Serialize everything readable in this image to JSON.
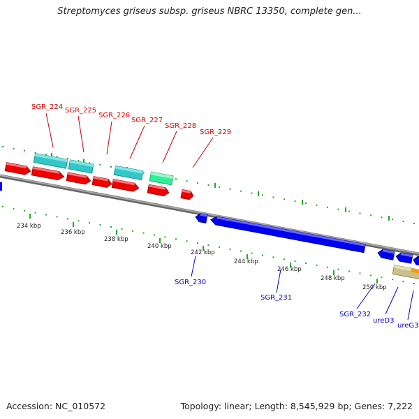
{
  "title": "Streptomyces griseus subsp. griseus NBRC 13350, complete gen...",
  "footer": {
    "accession": "Accession: NC_010572",
    "summary": "Topology: linear; Length: 8,545,929 bp; Genes: 7,222"
  },
  "colors": {
    "forward_gene": "#ee0000",
    "reverse_gene": "#0000ee",
    "tick": "#22aa22",
    "backbone": "#888888",
    "cds_alt_a": "#33c7c7",
    "cds_alt_b": "#33ee99",
    "region": "#c9c08a",
    "highlight": "#ff9900"
  },
  "axis": {
    "unit": "kbp",
    "ticks": [
      "234 kbp",
      "236 kbp",
      "238 kbp",
      "240 kbp",
      "242 kbp",
      "244 kbp",
      "246 kbp",
      "248 kbp",
      "250 kbp"
    ]
  },
  "gene_labels_top": [
    "SGR_224",
    "SGR_225",
    "SGR_226",
    "SGR_227",
    "SGR_228",
    "SGR_229"
  ],
  "gene_labels_bottom": [
    "SGR_230",
    "SGR_231",
    "SGR_232",
    "ureD3",
    "ureG3"
  ]
}
